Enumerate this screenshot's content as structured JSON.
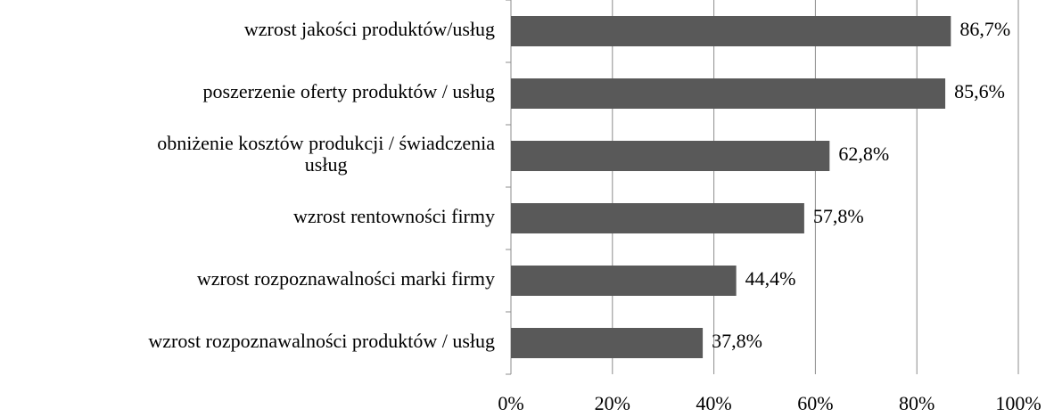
{
  "chart_data": {
    "type": "bar",
    "orientation": "horizontal",
    "categories": [
      "wzrost jakości produktów/usług",
      "poszerzenie oferty produktów / usług",
      "obniżenie kosztów produkcji / świadczenia\nusług",
      "wzrost rentowności firmy",
      "wzrost rozpoznawalności marki firmy",
      "wzrost rozpoznawalności produktów / usług"
    ],
    "values": [
      86.7,
      85.6,
      62.8,
      57.8,
      44.4,
      37.8
    ],
    "value_labels": [
      "86,7%",
      "85,6%",
      "62,8%",
      "57,8%",
      "44,4%",
      "37,8%"
    ],
    "color": "#595959",
    "xlim": [
      0,
      100
    ],
    "xticks": [
      {
        "value": 0,
        "label": "0%"
      },
      {
        "value": 20,
        "label": "20%"
      },
      {
        "value": 40,
        "label": "40%"
      },
      {
        "value": 60,
        "label": "60%"
      },
      {
        "value": 80,
        "label": "80%"
      },
      {
        "value": 100,
        "label": "100%"
      }
    ],
    "grid": true
  }
}
